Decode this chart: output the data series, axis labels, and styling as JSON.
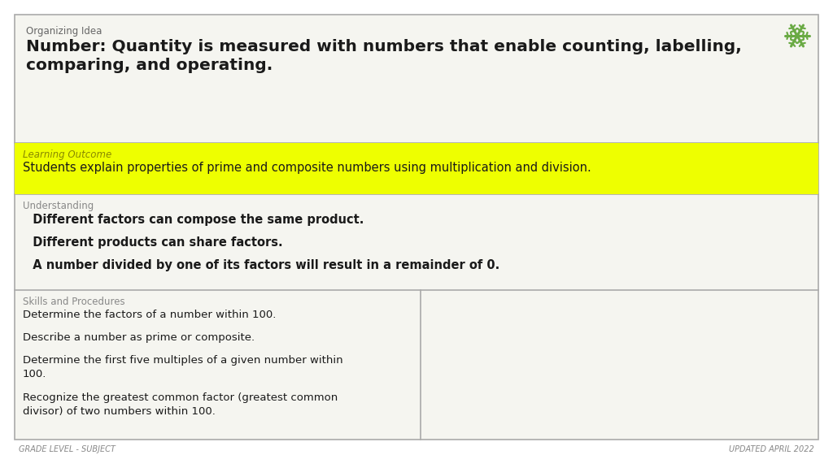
{
  "bg_color": "#f5f5f0",
  "border_color": "#aaaaaa",
  "title_label": "Organizing Idea",
  "title_label_color": "#666666",
  "title_line1": "Number: Quantity is measured with numbers that enable counting, labelling,",
  "title_line2": "comparing, and operating.",
  "title_text_color": "#1a1a1a",
  "learning_label": "Learning Outcome",
  "learning_label_color": "#888800",
  "learning_bg": "#eeff00",
  "learning_text": "Students explain properties of prime and composite numbers using multiplication and division.",
  "learning_text_color": "#1a1a1a",
  "understanding_label": "Understanding",
  "understanding_label_color": "#888888",
  "understanding_lines": [
    "  Different factors can compose the same product.",
    "  Different products can share factors.",
    "  A number divided by one of its factors will result in a remainder of 0."
  ],
  "understanding_text_color": "#1a1a1a",
  "skills_label": "Skills and Procedures",
  "skills_label_color": "#888888",
  "skills_text_color": "#1a1a1a",
  "footer_left": "GRADE LEVEL - SUBJECT",
  "footer_right": "UPDATED APRIL 2022",
  "footer_color": "#888888",
  "icon_color": "#6aaa44",
  "outer_bg": "#ffffff"
}
